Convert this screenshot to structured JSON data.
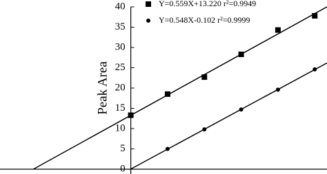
{
  "chart_data": {
    "type": "scatter",
    "y_label": "Peak Area",
    "xlim": [
      -32,
      48
    ],
    "ylim": [
      0,
      40
    ],
    "yticks": [
      0,
      5,
      10,
      15,
      20,
      25,
      30,
      35,
      40
    ],
    "series": [
      {
        "name": "Y=0.559X+13.220  r²=0.9949",
        "marker": "square",
        "color": "#000000",
        "x": [
          0,
          9,
          18,
          27,
          36,
          45
        ],
        "values": [
          13.3,
          18.5,
          22.7,
          28.3,
          34.3,
          37.8
        ]
      },
      {
        "name": "Y=0.548X-0.102  r²=0.9999",
        "marker": "circle",
        "color": "#000000",
        "x": [
          9,
          18,
          27,
          36,
          45
        ],
        "values": [
          5.0,
          9.8,
          14.7,
          19.6,
          24.6
        ]
      }
    ]
  }
}
